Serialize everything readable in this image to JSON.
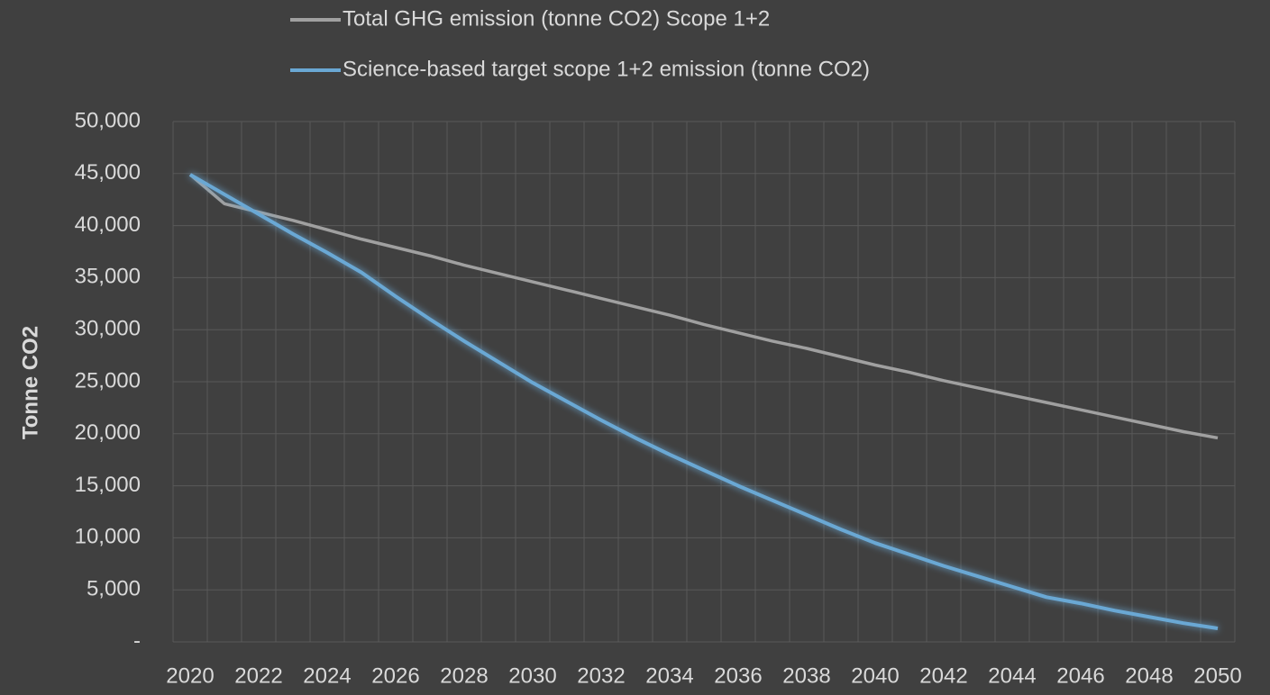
{
  "chart_data": {
    "type": "line",
    "ylabel": "Tonne CO2",
    "categories": [
      "2020",
      null,
      "2022",
      null,
      "2024",
      null,
      "2026",
      null,
      "2028",
      null,
      "2030",
      null,
      "2032",
      null,
      "2034",
      null,
      "2036",
      null,
      "2038",
      null,
      "2040",
      null,
      "2042",
      null,
      "2044",
      null,
      "2046",
      null,
      "2048",
      null,
      "2050"
    ],
    "series": [
      {
        "name": "Total GHG emission (tonne CO2) Scope 1+2",
        "color": "#a0a0a0",
        "values": [
          44900,
          42100,
          41300,
          40500,
          39600,
          38700,
          37900,
          37100,
          36200,
          35400,
          34600,
          33800,
          33000,
          32200,
          31400,
          30500,
          29700,
          28900,
          28200,
          27400,
          26600,
          25900,
          25100,
          24400,
          23700,
          23000,
          22300,
          21600,
          20900,
          20200,
          19600
        ]
      },
      {
        "name": "Science-based target scope 1+2 emission (tonne CO2)",
        "color": "#6aa8d4",
        "values": [
          44900,
          43000,
          41100,
          39200,
          37400,
          35500,
          33200,
          31000,
          28900,
          26900,
          24900,
          23100,
          21300,
          19600,
          18000,
          16500,
          15000,
          13600,
          12200,
          10800,
          9500,
          8400,
          7300,
          6300,
          5300,
          4300,
          3700,
          3000,
          2400,
          1800,
          1300
        ]
      }
    ],
    "ylim": [
      0,
      50000
    ],
    "yticks": [
      {
        "value": 0,
        "label": "-"
      },
      {
        "value": 5000,
        "label": "5,000"
      },
      {
        "value": 10000,
        "label": "10,000"
      },
      {
        "value": 15000,
        "label": "15,000"
      },
      {
        "value": 20000,
        "label": "20,000"
      },
      {
        "value": 25000,
        "label": "25,000"
      },
      {
        "value": 30000,
        "label": "30,000"
      },
      {
        "value": 35000,
        "label": "35,000"
      },
      {
        "value": 40000,
        "label": "40,000"
      },
      {
        "value": 45000,
        "label": "45,000"
      },
      {
        "value": 50000,
        "label": "50,000"
      }
    ],
    "grid": true,
    "legend": "top"
  }
}
